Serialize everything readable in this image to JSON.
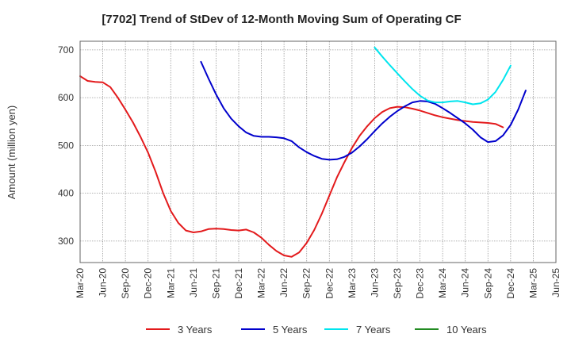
{
  "chart_data": {
    "type": "line",
    "title": "[7702]  Trend of StDev of 12-Month Moving Sum of Operating CF",
    "ylabel": "Amount (million yen)",
    "xlabel": "",
    "ylim": [
      255,
      718
    ],
    "yticks": [
      300,
      400,
      500,
      600,
      700
    ],
    "xticks": [
      "Mar-20",
      "Jun-20",
      "Sep-20",
      "Dec-20",
      "Mar-21",
      "Jun-21",
      "Sep-21",
      "Dec-21",
      "Mar-22",
      "Jun-22",
      "Sep-22",
      "Dec-22",
      "Mar-23",
      "Jun-23",
      "Sep-23",
      "Dec-23",
      "Mar-24",
      "Jun-24",
      "Sep-24",
      "Dec-24",
      "Mar-25",
      "Jun-25"
    ],
    "grid": true,
    "legend_position": "bottom",
    "series": [
      {
        "name": "3 Years",
        "color": "#e31a1c",
        "values": [
          645,
          635,
          633,
          632,
          622,
          600,
          575,
          548,
          518,
          485,
          445,
          400,
          363,
          338,
          322,
          318,
          320,
          325,
          326,
          325,
          323,
          322,
          324,
          318,
          307,
          292,
          279,
          270,
          267,
          276,
          296,
          323,
          357,
          395,
          433,
          465,
          495,
          520,
          540,
          557,
          570,
          578,
          581,
          580,
          577,
          573,
          568,
          563,
          559,
          556,
          553,
          551,
          549,
          548,
          547,
          545,
          538
        ]
      },
      {
        "name": "5 Years",
        "color": "#0000cc",
        "values": [
          null,
          null,
          null,
          null,
          null,
          null,
          null,
          null,
          null,
          null,
          null,
          null,
          null,
          null,
          null,
          null,
          675,
          640,
          607,
          578,
          556,
          540,
          527,
          520,
          518,
          518,
          517,
          515,
          509,
          496,
          486,
          478,
          472,
          470,
          471,
          476,
          485,
          498,
          513,
          530,
          546,
          560,
          572,
          582,
          590,
          593,
          592,
          587,
          578,
          568,
          557,
          546,
          533,
          517,
          507,
          509,
          521,
          543,
          575,
          615
        ]
      },
      {
        "name": "7 Years",
        "color": "#00e5ee",
        "values": [
          null,
          null,
          null,
          null,
          null,
          null,
          null,
          null,
          null,
          null,
          null,
          null,
          null,
          null,
          null,
          null,
          null,
          null,
          null,
          null,
          null,
          null,
          null,
          null,
          null,
          null,
          null,
          null,
          null,
          null,
          null,
          null,
          null,
          null,
          null,
          null,
          null,
          null,
          null,
          705,
          686,
          668,
          651,
          634,
          618,
          604,
          594,
          590,
          590,
          592,
          593,
          590,
          586,
          588,
          596,
          612,
          637,
          667
        ]
      },
      {
        "name": "10 Years",
        "color": "#228b22",
        "values": []
      }
    ]
  }
}
